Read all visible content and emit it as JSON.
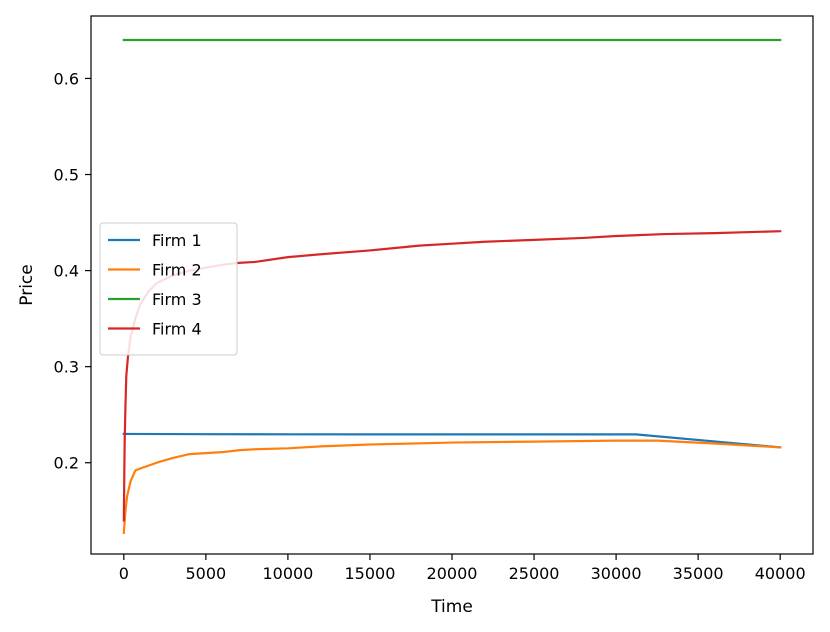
{
  "chart_data": {
    "type": "line",
    "xlabel": "Time",
    "ylabel": "Price",
    "xlim": [
      -2000,
      42000
    ],
    "ylim": [
      0.105,
      0.665
    ],
    "xticks": [
      0,
      5000,
      10000,
      15000,
      20000,
      25000,
      30000,
      35000,
      40000
    ],
    "yticks": [
      0.2,
      0.3,
      0.4,
      0.5,
      0.6
    ],
    "xtick_labels": [
      "0",
      "5000",
      "10000",
      "15000",
      "20000",
      "25000",
      "30000",
      "35000",
      "40000"
    ],
    "ytick_labels": [
      "0.2",
      "0.3",
      "0.4",
      "0.5",
      "0.6"
    ],
    "grid": false,
    "legend_position": "center-left",
    "series": [
      {
        "name": "Firm 1",
        "color": "#1f77b4",
        "points": [
          [
            0,
            0.23
          ],
          [
            5000,
            0.2297
          ],
          [
            10000,
            0.2296
          ],
          [
            20000,
            0.2295
          ],
          [
            31200,
            0.2295
          ],
          [
            40000,
            0.216
          ]
        ]
      },
      {
        "name": "Firm 2",
        "color": "#ff7f0e",
        "points": [
          [
            0,
            0.127
          ],
          [
            100,
            0.15
          ],
          [
            200,
            0.165
          ],
          [
            400,
            0.18
          ],
          [
            700,
            0.192
          ],
          [
            1000,
            0.194
          ],
          [
            2000,
            0.2
          ],
          [
            3000,
            0.205
          ],
          [
            4000,
            0.209
          ],
          [
            5000,
            0.21
          ],
          [
            6000,
            0.211
          ],
          [
            7000,
            0.213
          ],
          [
            8000,
            0.214
          ],
          [
            10000,
            0.215
          ],
          [
            12000,
            0.217
          ],
          [
            15000,
            0.219
          ],
          [
            20000,
            0.221
          ],
          [
            25000,
            0.222
          ],
          [
            30000,
            0.223
          ],
          [
            32500,
            0.223
          ],
          [
            36000,
            0.22
          ],
          [
            40000,
            0.216
          ]
        ]
      },
      {
        "name": "Firm 3",
        "color": "#2ca02c",
        "points": [
          [
            0,
            0.64
          ],
          [
            40000,
            0.64
          ]
        ]
      },
      {
        "name": "Firm 4",
        "color": "#d62728",
        "points": [
          [
            0,
            0.14
          ],
          [
            50,
            0.22
          ],
          [
            100,
            0.26
          ],
          [
            150,
            0.29
          ],
          [
            250,
            0.31
          ],
          [
            400,
            0.33
          ],
          [
            700,
            0.35
          ],
          [
            1000,
            0.365
          ],
          [
            1500,
            0.378
          ],
          [
            2000,
            0.387
          ],
          [
            3000,
            0.395
          ],
          [
            4000,
            0.4
          ],
          [
            5000,
            0.403
          ],
          [
            6000,
            0.406
          ],
          [
            7000,
            0.408
          ],
          [
            8000,
            0.409
          ],
          [
            10000,
            0.414
          ],
          [
            12000,
            0.417
          ],
          [
            15000,
            0.421
          ],
          [
            18000,
            0.426
          ],
          [
            20000,
            0.428
          ],
          [
            22000,
            0.43
          ],
          [
            25000,
            0.432
          ],
          [
            28000,
            0.434
          ],
          [
            30000,
            0.436
          ],
          [
            33000,
            0.438
          ],
          [
            36000,
            0.439
          ],
          [
            40000,
            0.441
          ]
        ]
      }
    ]
  }
}
